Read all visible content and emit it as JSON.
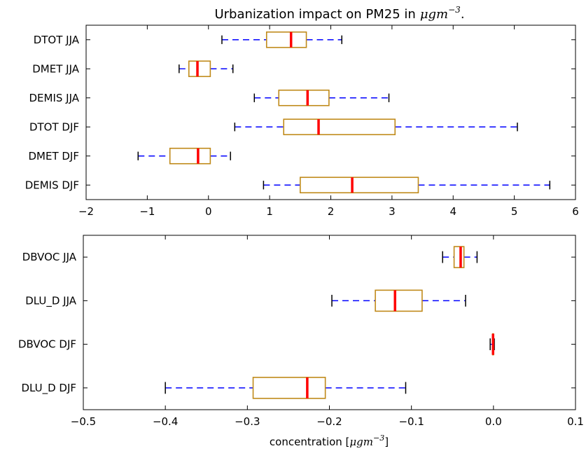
{
  "chart_data": [
    {
      "type": "boxplot",
      "title": "Urbanization impact on PM25 in",
      "title_math": "μgm",
      "title_math_sup": "−3",
      "title_suffix": ".",
      "xlabel": "",
      "xlim": [
        -2,
        6
      ],
      "xticks": [
        -2,
        -1,
        0,
        1,
        2,
        3,
        4,
        5,
        6
      ],
      "xtick_labels": [
        "−2",
        "−1",
        "0",
        "1",
        "2",
        "3",
        "4",
        "5",
        "6"
      ],
      "grid": false,
      "series": [
        {
          "name": "DTOT JJA",
          "whislo": 0.22,
          "q1": 0.95,
          "med": 1.35,
          "q3": 1.6,
          "whishi": 2.18
        },
        {
          "name": "DMET JJA",
          "whislo": -0.48,
          "q1": -0.32,
          "med": -0.18,
          "q3": 0.03,
          "whishi": 0.4
        },
        {
          "name": "DEMIS JJA",
          "whislo": 0.75,
          "q1": 1.15,
          "med": 1.62,
          "q3": 1.97,
          "whishi": 2.95
        },
        {
          "name": "DTOT DJF",
          "whislo": 0.43,
          "q1": 1.23,
          "med": 1.8,
          "q3": 3.05,
          "whishi": 5.05
        },
        {
          "name": "DMET DJF",
          "whislo": -1.15,
          "q1": -0.63,
          "med": -0.17,
          "q3": 0.03,
          "whishi": 0.36
        },
        {
          "name": "DEMIS DJF",
          "whislo": 0.9,
          "q1": 1.5,
          "med": 2.35,
          "q3": 3.43,
          "whishi": 5.58
        }
      ]
    },
    {
      "type": "boxplot",
      "title": "",
      "xlabel": "concentration [",
      "xlabel_math": "μgm",
      "xlabel_math_sup": "−3",
      "xlabel_suffix": "]",
      "xlim": [
        -0.5,
        0.1
      ],
      "xticks": [
        -0.5,
        -0.4,
        -0.3,
        -0.2,
        -0.1,
        0.0,
        0.1
      ],
      "xtick_labels": [
        "−0.5",
        "−0.4",
        "−0.3",
        "−0.2",
        "−0.1",
        "0.0",
        "0.1"
      ],
      "grid": false,
      "series": [
        {
          "name": "DBVOC JJA",
          "whislo": -0.062,
          "q1": -0.048,
          "med": -0.04,
          "q3": -0.036,
          "whishi": -0.02
        },
        {
          "name": "DLU_D JJA",
          "whislo": -0.197,
          "q1": -0.144,
          "med": -0.12,
          "q3": -0.087,
          "whishi": -0.034
        },
        {
          "name": "DBVOC DJF",
          "whislo": -0.004,
          "q1": -0.001,
          "med": -0.0005,
          "q3": 0.0,
          "whishi": 0.001
        },
        {
          "name": "DLU_D DJF",
          "whislo": -0.4,
          "q1": -0.293,
          "med": -0.227,
          "q3": -0.205,
          "whishi": -0.107
        }
      ]
    }
  ]
}
